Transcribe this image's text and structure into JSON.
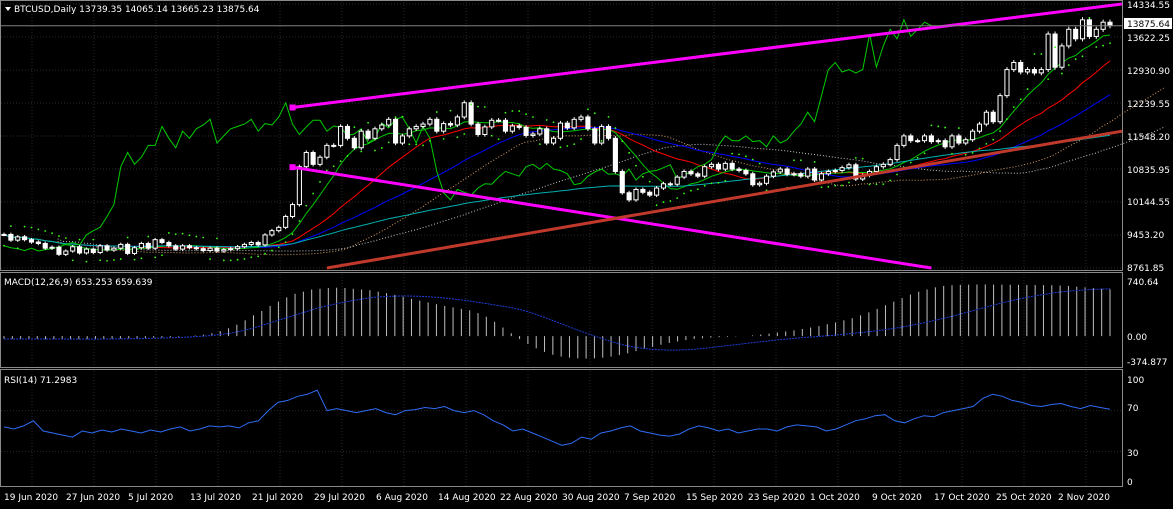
{
  "main_panel": {
    "header": "BTCUSD,Daily  13739.35 14065.14 13665.23 13875.64",
    "price_axis": [
      "14334.55",
      "13622.25",
      "12930.90",
      "12239.55",
      "11548.20",
      "10835.95",
      "10144.55",
      "9453.20",
      "8761.85"
    ],
    "current_price": "13875.64"
  },
  "macd_panel": {
    "header": "MACD(12,26,9) 653.253 659.639",
    "axis": [
      "740.64",
      "0.00",
      "-374.877"
    ]
  },
  "rsi_panel": {
    "header": "RSI(14) 71.2983",
    "axis": [
      "100",
      "70",
      "30",
      "0"
    ]
  },
  "date_axis": [
    "19 Jun 2020",
    "27 Jun 2020",
    "5 Jul 2020",
    "13 Jul 2020",
    "21 Jul 2020",
    "29 Jul 2020",
    "6 Aug 2020",
    "14 Aug 2020",
    "22 Aug 2020",
    "30 Aug 2020",
    "7 Sep 2020",
    "15 Sep 2020",
    "23 Sep 2020",
    "1 Oct 2020",
    "9 Oct 2020",
    "17 Oct 2020",
    "25 Oct 2020",
    "2 Nov 2020"
  ],
  "colors": {
    "background": "#000000",
    "grid": "#2a2a2a",
    "text": "#ffffff",
    "candle_up": "#ffffff",
    "candle_down": "#ffffff",
    "trendline": "#ff00ff",
    "support": "#c0392b",
    "ma_fast": "#ff0000",
    "ma_slow": "#0000ff",
    "ma_long": "#00b0b0",
    "psar": "#39ff14",
    "macd_hist": "#c0c0c0",
    "macd_signal": "#1e3dd6",
    "rsi": "#2f6cf5",
    "chikou": "#00cc00"
  },
  "chart_data": [
    {
      "type": "candlestick",
      "title": "BTCUSD,Daily",
      "ohlc_last": {
        "open": 13739.35,
        "high": 14065.14,
        "low": 13665.23,
        "close": 13875.64
      },
      "ylim": [
        8761.85,
        14334.55
      ],
      "series": [
        {
          "values": [
            9470,
            9350,
            9420,
            9360,
            9310,
            9280,
            9180,
            9200,
            9050,
            9120,
            9210,
            9080,
            9160,
            9090,
            9230,
            9140,
            9180,
            9260,
            9070,
            9190,
            9280,
            9180,
            9360,
            9300,
            9230,
            9160,
            9230,
            9190,
            9170,
            9130,
            9180,
            9120,
            9150,
            9170,
            9210,
            9260,
            9300,
            9250,
            9460,
            9550,
            9620,
            9850,
            10100,
            10900,
            11200,
            10950,
            11100,
            11350,
            11350,
            11750,
            11500,
            11300,
            11650,
            11500,
            11700,
            11780,
            11900,
            11400,
            11550,
            11700,
            11750,
            11800,
            11900,
            11650,
            11810,
            11780,
            11950,
            12250,
            11800,
            11580,
            11740,
            11880,
            11880,
            11650,
            11760,
            11730,
            11560,
            11590,
            11700,
            11400,
            11500,
            11820,
            11720,
            11900,
            11950,
            11700,
            11400,
            11750,
            11500,
            10800,
            10350,
            10200,
            10420,
            10360,
            10300,
            10450,
            10540,
            10530,
            10680,
            10800,
            10750,
            10700,
            10900,
            10950,
            10850,
            10970,
            10850,
            10820,
            10750,
            10520,
            10550,
            10700,
            10790,
            10850,
            10740,
            10750,
            10700,
            10850,
            10620,
            10750,
            10800,
            10820,
            10880,
            10940,
            10640,
            10720,
            10800,
            10900,
            10950,
            11050,
            11350,
            11550,
            11450,
            11450,
            11550,
            11430,
            11450,
            11320,
            11550,
            11400,
            11470,
            11650,
            11800,
            12050,
            11850,
            12400,
            12950,
            13100,
            12900,
            12950,
            12880,
            12950,
            13700,
            13000,
            13450,
            13800,
            13600,
            14000,
            13650,
            13800,
            13950,
            13875.64
          ]
        }
      ]
    },
    {
      "type": "bar",
      "title": "MACD(12,26,9)",
      "ylim": [
        -374.877,
        740.64
      ],
      "series": [
        {
          "name": "MACD",
          "values": [
            -35,
            -38,
            -40,
            -40,
            -41,
            -42,
            -43,
            -44,
            -45,
            -43,
            -42,
            -40,
            -38,
            -36,
            -34,
            -31,
            -28,
            -25,
            -22,
            -19,
            -14,
            -8,
            -2,
            8,
            20,
            40,
            70,
            110,
            160,
            220,
            290,
            350,
            420,
            480,
            540,
            590,
            620,
            650,
            660,
            670,
            675,
            670,
            660,
            650,
            640,
            620,
            600,
            575,
            550,
            520,
            495,
            470,
            445,
            420,
            400,
            380,
            360,
            320,
            270,
            200,
            120,
            40,
            -40,
            -110,
            -170,
            -220,
            -260,
            -285,
            -300,
            -310,
            -312,
            -310,
            -300,
            -285,
            -265,
            -240,
            -210,
            -180,
            -150,
            -120,
            -95,
            -75,
            -55,
            -40,
            -30,
            -20,
            -15,
            -10,
            -5,
            0,
            10,
            22,
            35,
            50,
            65,
            80,
            100,
            120,
            140,
            165,
            190,
            220,
            250,
            290,
            330,
            380,
            430,
            480,
            530,
            580,
            620,
            650,
            680,
            700,
            710,
            715,
            718,
            720,
            720,
            719,
            718,
            716,
            715,
            713,
            712,
            711,
            710,
            705,
            700,
            690,
            680,
            670,
            660,
            653.253
          ]
        },
        {
          "name": "Signal",
          "values": [
            -40,
            -40,
            -40,
            -40,
            -40,
            -40,
            -40,
            -41,
            -41,
            -41,
            -41,
            -40,
            -39,
            -38,
            -36,
            -34,
            -31,
            -28,
            -24,
            -20,
            -14,
            -6,
            3,
            15,
            30,
            50,
            80,
            110,
            150,
            190,
            230,
            270,
            310,
            350,
            390,
            420,
            450,
            475,
            500,
            520,
            540,
            550,
            555,
            560,
            560,
            555,
            550,
            540,
            528,
            515,
            500,
            480,
            460,
            440,
            420,
            398,
            370,
            335,
            290,
            245,
            195,
            145,
            95,
            50,
            5,
            -40,
            -80,
            -115,
            -145,
            -165,
            -180,
            -190,
            -195,
            -195,
            -190,
            -182,
            -170,
            -155,
            -140,
            -125,
            -110,
            -95,
            -80,
            -65,
            -52,
            -40,
            -28,
            -18,
            -8,
            2,
            12,
            24,
            36,
            50,
            64,
            80,
            98,
            118,
            140,
            165,
            190,
            220,
            250,
            280,
            315,
            350,
            385,
            420,
            455,
            485,
            515,
            540,
            565,
            585,
            605,
            620,
            632,
            642,
            650,
            656,
            659.639
          ]
        }
      ]
    },
    {
      "type": "line",
      "title": "RSI(14)",
      "ylim": [
        0,
        100
      ],
      "series": [
        {
          "name": "RSI",
          "values": [
            54,
            52,
            55,
            60,
            50,
            48,
            46,
            44,
            50,
            48,
            51,
            49,
            52,
            50,
            48,
            51,
            49,
            52,
            54,
            50,
            52,
            55,
            54,
            55,
            53,
            58,
            60,
            70,
            78,
            80,
            84,
            86,
            90,
            70,
            72,
            70,
            68,
            70,
            72,
            68,
            66,
            70,
            71,
            73,
            72,
            74,
            70,
            68,
            70,
            66,
            60,
            56,
            50,
            52,
            48,
            44,
            40,
            36,
            38,
            44,
            42,
            48,
            50,
            53,
            55,
            50,
            48,
            46,
            45,
            47,
            52,
            55,
            53,
            50,
            52,
            48,
            50,
            52,
            52,
            50,
            54,
            56,
            55,
            54,
            50,
            52,
            56,
            60,
            62,
            65,
            66,
            60,
            58,
            62,
            65,
            64,
            68,
            70,
            72,
            74,
            82,
            86,
            84,
            80,
            78,
            75,
            74,
            76,
            77,
            74,
            72,
            75,
            73,
            71.2983
          ]
        }
      ]
    }
  ]
}
